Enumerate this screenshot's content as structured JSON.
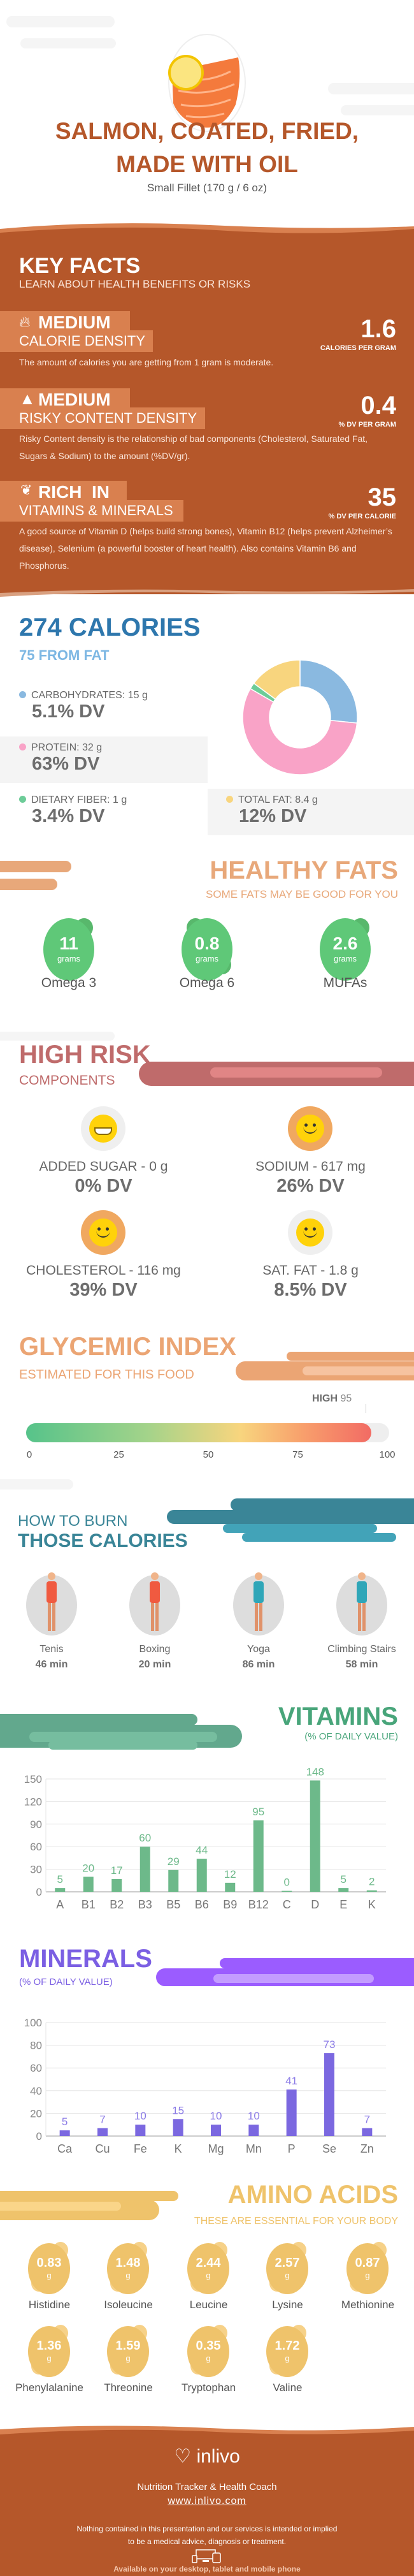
{
  "header": {
    "title_line1": "SALMON, COATED, FRIED,",
    "title_line2": "MADE WITH OIL",
    "serving": "Small Fillet (170 g / 6 oz)",
    "image": "salmon-fillet-with-lemon"
  },
  "key_facts": {
    "title": "KEY FACTS",
    "subtitle": "LEARN ABOUT HEALTH BENEFITS OR RISKS",
    "items": [
      {
        "icon": "flame-icon",
        "level": "MEDIUM",
        "label": "CALORIE DENSITY",
        "value": "1.6",
        "unit": "CALORIES PER GRAM",
        "text": "The amount of calories you are getting from 1 gram is moderate."
      },
      {
        "icon": "warning-icon",
        "level": "MEDIUM",
        "label": "RISKY CONTENT DENSITY",
        "value": "0.4",
        "unit": "% DV PER GRAM",
        "text": "Risky Content density is the relationship of bad components (Cholesterol, Saturated Fat, Sugars & Sodium) to the amount (%DV/gr)."
      },
      {
        "icon": "leaf-icon",
        "level": "RICH  IN",
        "label": "VITAMINS & MINERALS",
        "value": "35",
        "unit": "% DV PER CALORIE",
        "text": "A good source of Vitamin D (helps build strong bones), Vitamin B12 (helps prevent Alzheimer’s disease), Selenium (a powerful booster of heart health). Also contains Vitamin B6 and Phosphorus."
      }
    ]
  },
  "calories": {
    "title": "274 CALORIES",
    "subtitle": "75 FROM FAT",
    "macros": [
      {
        "label": "CARBOHYDRATES: 15 g",
        "dv": "5.1% DV",
        "grams": 15,
        "color": "#8ab9e0"
      },
      {
        "label": "PROTEIN: 32 g",
        "dv": "63% DV",
        "grams": 32,
        "color": "#f9a3c7"
      },
      {
        "label": "DIETARY FIBER: 1 g",
        "dv": "3.4% DV",
        "grams": 1,
        "color": "#6dcc98"
      },
      {
        "label": "TOTAL FAT: 8.4 g",
        "dv": "12% DV",
        "grams": 8.4,
        "color": "#f8d57e"
      }
    ]
  },
  "healthy_fats": {
    "title": "HEALTHY FATS",
    "subtitle": "SOME FATS MAY BE GOOD FOR YOU",
    "unit": "grams",
    "items": [
      {
        "value": "11",
        "label": "Omega 3"
      },
      {
        "value": "0.8",
        "label": "Omega 6"
      },
      {
        "value": "2.6",
        "label": "MUFAs"
      }
    ]
  },
  "high_risk": {
    "title": "HIGH RISK",
    "subtitle": "COMPONENTS",
    "items": [
      {
        "label": "ADDED SUGAR - 0 g",
        "dv": "0% DV",
        "face": "grin-face-icon",
        "ring": "#efefef"
      },
      {
        "label": "SODIUM - 617 mg",
        "dv": "26% DV",
        "face": "smile-face-icon",
        "ring": "#f0a860"
      },
      {
        "label": "CHOLESTEROL - 116 mg",
        "dv": "39% DV",
        "face": "smile-face-icon",
        "ring": "#f0a860"
      },
      {
        "label": "SAT. FAT - 1.8 g",
        "dv": "8.5% DV",
        "face": "smile-face-icon",
        "ring": "#efefef"
      }
    ]
  },
  "glycemic": {
    "title": "GLYCEMIC INDEX",
    "subtitle": "ESTIMATED FOR THIS FOOD",
    "level": "HIGH",
    "value": 95,
    "value_label": "95",
    "ticks": [
      "0",
      "25",
      "50",
      "75",
      "100"
    ]
  },
  "burn": {
    "title_line1": "HOW TO BURN",
    "title_line2": "THOSE CALORIES",
    "items": [
      {
        "label": "Tenis",
        "time": "46 min"
      },
      {
        "label": "Boxing",
        "time": "20 min"
      },
      {
        "label": "Yoga",
        "time": "86 min"
      },
      {
        "label": "Climbing Stairs",
        "time": "58 min"
      }
    ]
  },
  "chart_data": [
    {
      "type": "bar",
      "title": "VITAMINS",
      "subtitle": "(% OF DAILY VALUE)",
      "categories": [
        "A",
        "B1",
        "B2",
        "B3",
        "B5",
        "B6",
        "B9",
        "B12",
        "C",
        "D",
        "E",
        "K"
      ],
      "values": [
        5,
        20,
        17,
        60,
        29,
        44,
        12,
        95,
        0,
        148,
        5,
        2
      ],
      "ylim": [
        0,
        150
      ],
      "yticks": [
        "0",
        "30",
        "60",
        "90",
        "120",
        "150"
      ],
      "grid": true,
      "color": "#6db98a"
    },
    {
      "type": "bar",
      "title": "MINERALS",
      "subtitle": "(% OF DAILY VALUE)",
      "categories": [
        "Ca",
        "Cu",
        "Fe",
        "K",
        "Mg",
        "Mn",
        "P",
        "Se",
        "Zn"
      ],
      "values": [
        5,
        7,
        10,
        15,
        10,
        10,
        41,
        73,
        7
      ],
      "ylim": [
        0,
        100
      ],
      "yticks": [
        "0",
        "20",
        "40",
        "60",
        "80",
        "100"
      ],
      "grid": true,
      "color": "#7b68e0"
    }
  ],
  "amino": {
    "title": "AMINO ACIDS",
    "subtitle": "THESE ARE ESSENTIAL FOR YOUR BODY",
    "unit": "g",
    "items": [
      {
        "value": "0.83",
        "label": "Histidine"
      },
      {
        "value": "1.48",
        "label": "Isoleucine"
      },
      {
        "value": "2.44",
        "label": "Leucine"
      },
      {
        "value": "2.57",
        "label": "Lysine"
      },
      {
        "value": "0.87",
        "label": "Methionine"
      },
      {
        "value": "1.36",
        "label": "Phenylalanine"
      },
      {
        "value": "1.59",
        "label": "Threonine"
      },
      {
        "value": "0.35",
        "label": "Tryptophan"
      },
      {
        "value": "1.72",
        "label": "Valine"
      }
    ]
  },
  "footer": {
    "brand": "inlivo",
    "tagline": "Nutrition Tracker & Health Coach",
    "url": "www.inlivo.com",
    "disclaimer_line1": "Nothing contained in this presentation and our services is intended or implied",
    "disclaimer_line2": "to be a medical advice, diagnosis or treatment.",
    "available": "Available on your desktop, tablet and mobile phone"
  },
  "colors": {
    "brown": "#b5572a",
    "brown_light": "#d9804f",
    "blue": "#2e77ad",
    "green": "#5fc878",
    "risk": "#bf6b6b",
    "glycemic": "#eba574",
    "teal": "#3a8597",
    "vitamins": "#48a57a",
    "minerals": "#7b5fe3",
    "amino": "#efc36b"
  }
}
